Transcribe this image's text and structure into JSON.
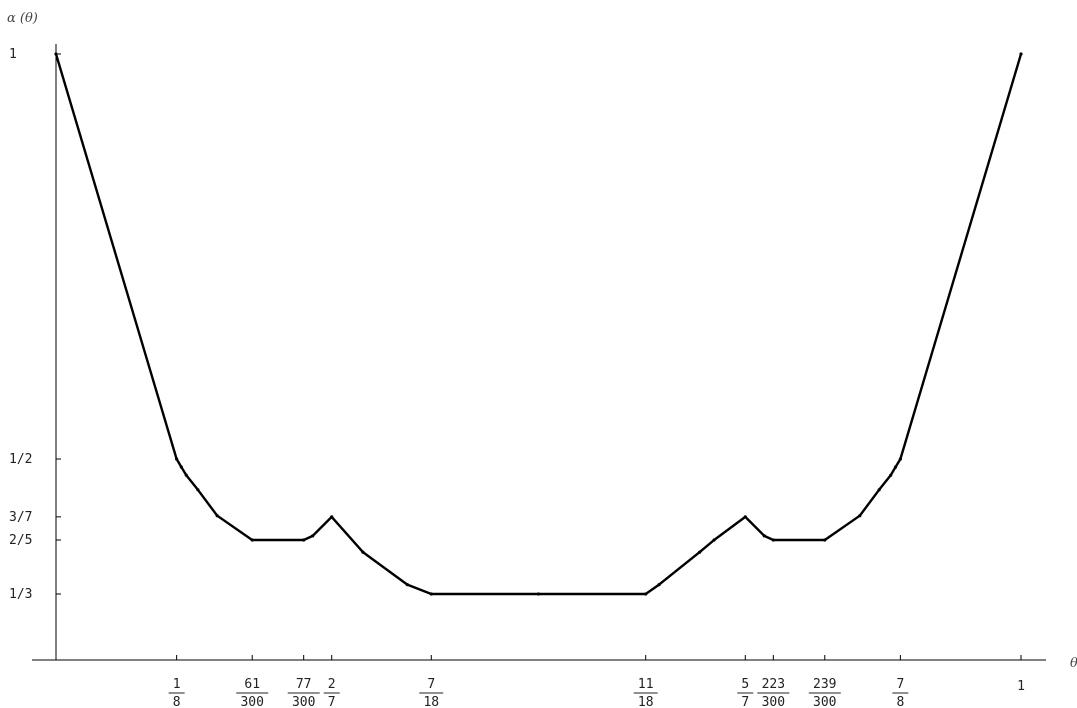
{
  "chart_data": {
    "type": "line",
    "title": "",
    "xlabel": "θ",
    "ylabel": "α (θ)",
    "xlim": [
      0,
      1
    ],
    "ylim": [
      0.25,
      1
    ],
    "grid": false,
    "legend": "none",
    "colors": {
      "line": "#000000",
      "axis": "#000000",
      "text": "#222222"
    },
    "x_ticks": [
      {
        "value": 0.125,
        "num": "1",
        "den": "8"
      },
      {
        "value": 0.20333,
        "num": "61",
        "den": "300"
      },
      {
        "value": 0.25667,
        "num": "77",
        "den": "300"
      },
      {
        "value": 0.28571,
        "num": "2",
        "den": "7"
      },
      {
        "value": 0.38889,
        "num": "7",
        "den": "18"
      },
      {
        "value": 0.61111,
        "num": "11",
        "den": "18"
      },
      {
        "value": 0.71429,
        "num": "5",
        "den": "7"
      },
      {
        "value": 0.74333,
        "num": "223",
        "den": "300"
      },
      {
        "value": 0.79667,
        "num": "239",
        "den": "300"
      },
      {
        "value": 0.875,
        "num": "7",
        "den": "8"
      },
      {
        "value": 1.0,
        "label": "1"
      }
    ],
    "y_ticks": [
      {
        "value": 1.0,
        "label": "1"
      },
      {
        "value": 0.5,
        "label": "1/2"
      },
      {
        "value": 0.42857,
        "label": "3/7"
      },
      {
        "value": 0.4,
        "label": "2/5"
      },
      {
        "value": 0.33333,
        "label": "1/3"
      }
    ],
    "series": [
      {
        "x": [
          0,
          0.125,
          0.13,
          0.135,
          0.147,
          0.167,
          0.20333,
          0.25667,
          0.266,
          0.28571,
          0.318,
          0.364,
          0.38889,
          0.5,
          0.61111,
          0.625,
          0.667,
          0.682,
          0.71429,
          0.734,
          0.74333,
          0.79667,
          0.833,
          0.853,
          0.865,
          0.87,
          0.875,
          1.0
        ],
        "y": [
          1.0,
          0.5,
          0.49,
          0.48,
          0.462,
          0.43,
          0.4,
          0.4,
          0.405,
          0.42857,
          0.385,
          0.345,
          0.33333,
          0.33333,
          0.33333,
          0.345,
          0.385,
          0.4,
          0.42857,
          0.405,
          0.4,
          0.4,
          0.43,
          0.462,
          0.48,
          0.49,
          0.5,
          1.0
        ]
      }
    ]
  }
}
